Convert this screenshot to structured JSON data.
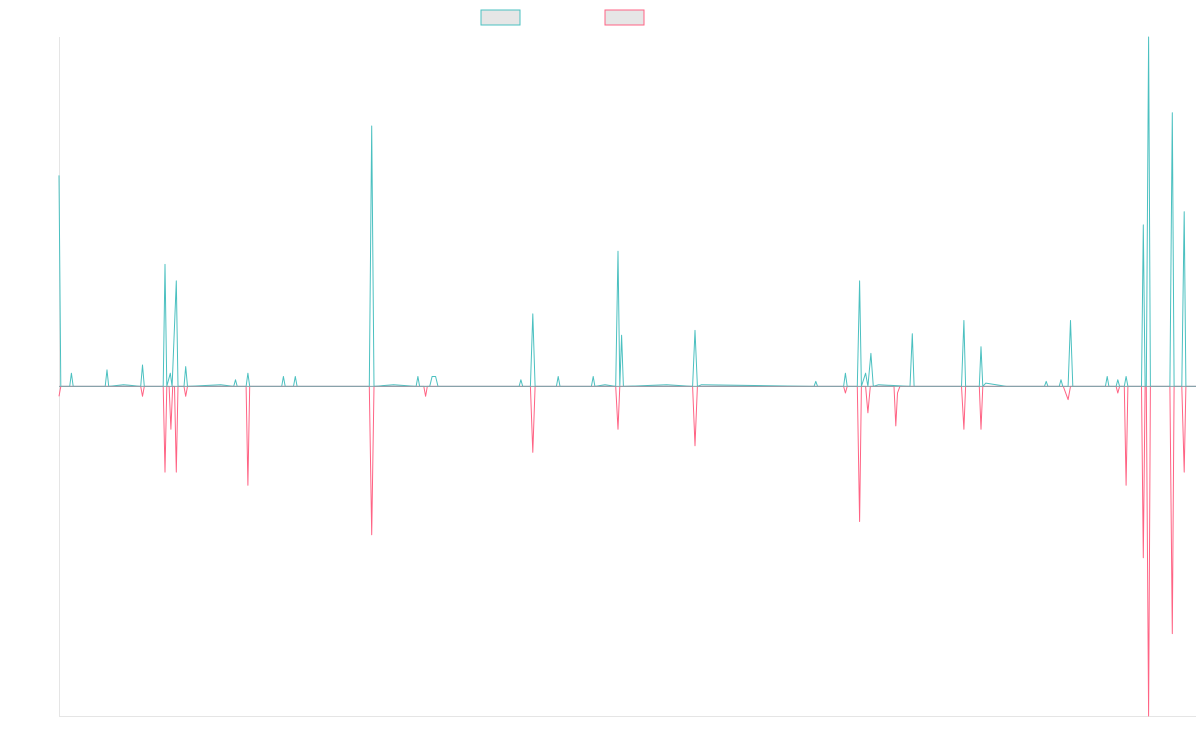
{
  "chart_data": {
    "type": "line",
    "title": "",
    "xlabel": "",
    "ylabel": "",
    "ylim": [
      -1.0,
      1.06
    ],
    "grid": false,
    "legend_position": "top-center",
    "colors": {
      "series_a": "#4bc0c0",
      "series_b": "#ff6384",
      "legend_fill": "#e6e6e6"
    },
    "series": [
      {
        "name": "",
        "color": "#4bc0c0",
        "points": [
          [
            0,
            0.64
          ],
          [
            0.3,
            0
          ],
          [
            1.8,
            0
          ],
          [
            2.1,
            0.04
          ],
          [
            2.4,
            0
          ],
          [
            7.8,
            0
          ],
          [
            8.1,
            0.05
          ],
          [
            8.4,
            0
          ],
          [
            10.9,
            0.005
          ],
          [
            13.8,
            0
          ],
          [
            14.1,
            0.065
          ],
          [
            14.4,
            0
          ],
          [
            17.6,
            0
          ],
          [
            17.9,
            0.37
          ],
          [
            18.2,
            0
          ],
          [
            18.8,
            0.04
          ],
          [
            19.1,
            0
          ],
          [
            19.8,
            0.32
          ],
          [
            20.1,
            0
          ],
          [
            21.1,
            0
          ],
          [
            21.4,
            0.06
          ],
          [
            21.7,
            0
          ],
          [
            27.3,
            0.005
          ],
          [
            29.5,
            0
          ],
          [
            29.8,
            0.02
          ],
          [
            30.1,
            0
          ],
          [
            31.6,
            0
          ],
          [
            31.9,
            0.04
          ],
          [
            32.2,
            0
          ],
          [
            37.6,
            0
          ],
          [
            37.9,
            0.03
          ],
          [
            38.2,
            0
          ],
          [
            39.6,
            0
          ],
          [
            39.9,
            0.03
          ],
          [
            40.2,
            0
          ],
          [
            52.4,
            0
          ],
          [
            52.8,
            0.79
          ],
          [
            53.2,
            0
          ],
          [
            56.5,
            0.005
          ],
          [
            60.3,
            0
          ],
          [
            60.6,
            0.03
          ],
          [
            60.9,
            0
          ],
          [
            62.6,
            0
          ],
          [
            63.0,
            0.03
          ],
          [
            63.6,
            0.03
          ],
          [
            64.0,
            0
          ],
          [
            77.7,
            0
          ],
          [
            78.0,
            0.02
          ],
          [
            78.3,
            0
          ],
          [
            79.6,
            0
          ],
          [
            80.0,
            0.22
          ],
          [
            80.4,
            0
          ],
          [
            84.0,
            0
          ],
          [
            84.3,
            0.03
          ],
          [
            84.6,
            0
          ],
          [
            89.9,
            0
          ],
          [
            90.2,
            0.03
          ],
          [
            90.5,
            0
          ],
          [
            92.2,
            0.005
          ],
          [
            94.0,
            0
          ],
          [
            94.4,
            0.41
          ],
          [
            94.7,
            0
          ],
          [
            95.0,
            0.155
          ],
          [
            95.3,
            0
          ],
          [
            102.6,
            0.005
          ],
          [
            107.0,
            0
          ],
          [
            107.4,
            0.17
          ],
          [
            107.8,
            0
          ],
          [
            108.5,
            0.005
          ],
          [
            127.5,
            0
          ],
          [
            127.8,
            0.015
          ],
          [
            128.1,
            0
          ],
          [
            132.5,
            0
          ],
          [
            132.8,
            0.04
          ],
          [
            133.1,
            0
          ],
          [
            134.8,
            0
          ],
          [
            135.2,
            0.32
          ],
          [
            135.5,
            0
          ],
          [
            136.2,
            0.04
          ],
          [
            136.6,
            0
          ],
          [
            137.1,
            0.1
          ],
          [
            137.5,
            0
          ],
          [
            138.4,
            0.005
          ],
          [
            143.7,
            0
          ],
          [
            144.1,
            0.16
          ],
          [
            144.4,
            0
          ],
          [
            152.4,
            0
          ],
          [
            152.8,
            0.2
          ],
          [
            153.1,
            0
          ],
          [
            155.4,
            0
          ],
          [
            155.7,
            0.12
          ],
          [
            156.0,
            0
          ],
          [
            156.5,
            0.01
          ],
          [
            160.0,
            0
          ],
          [
            166.4,
            0
          ],
          [
            166.7,
            0.015
          ],
          [
            167.0,
            0
          ],
          [
            168.9,
            0
          ],
          [
            169.2,
            0.02
          ],
          [
            169.5,
            0
          ],
          [
            170.4,
            0
          ],
          [
            170.8,
            0.2
          ],
          [
            171.2,
            0
          ],
          [
            176.7,
            0
          ],
          [
            177.0,
            0.03
          ],
          [
            177.3,
            0
          ],
          [
            178.5,
            0
          ],
          [
            178.8,
            0.02
          ],
          [
            179.1,
            0
          ],
          [
            179.9,
            0
          ],
          [
            180.2,
            0.03
          ],
          [
            180.5,
            0
          ],
          [
            182.8,
            0
          ],
          [
            183.1,
            0.49
          ],
          [
            183.4,
            0
          ],
          [
            183.6,
            0
          ],
          [
            184.0,
            1.06
          ],
          [
            184.3,
            0
          ],
          [
            187.6,
            0
          ],
          [
            188.0,
            0.83
          ],
          [
            188.3,
            0
          ],
          [
            189.6,
            0
          ],
          [
            190.0,
            0.53
          ],
          [
            190.3,
            0
          ],
          [
            192,
            0
          ]
        ]
      },
      {
        "name": "",
        "color": "#ff6384",
        "points": [
          [
            0,
            -0.03
          ],
          [
            0.3,
            0
          ],
          [
            13.8,
            0
          ],
          [
            14.1,
            -0.03
          ],
          [
            14.4,
            0
          ],
          [
            17.6,
            0
          ],
          [
            17.9,
            -0.26
          ],
          [
            18.2,
            0
          ],
          [
            18.6,
            0
          ],
          [
            18.9,
            -0.13
          ],
          [
            19.2,
            0
          ],
          [
            19.5,
            0
          ],
          [
            19.8,
            -0.26
          ],
          [
            20.1,
            0
          ],
          [
            21.1,
            0
          ],
          [
            21.4,
            -0.03
          ],
          [
            21.7,
            0
          ],
          [
            31.6,
            0
          ],
          [
            31.9,
            -0.3
          ],
          [
            32.2,
            0
          ],
          [
            52.4,
            0
          ],
          [
            52.8,
            -0.45
          ],
          [
            53.2,
            0
          ],
          [
            61.6,
            0
          ],
          [
            61.9,
            -0.03
          ],
          [
            62.2,
            0
          ],
          [
            78.3,
            0
          ],
          [
            79.6,
            0
          ],
          [
            80.0,
            -0.2
          ],
          [
            80.4,
            0
          ],
          [
            94.0,
            0
          ],
          [
            94.4,
            -0.13
          ],
          [
            94.7,
            0
          ],
          [
            107.0,
            0
          ],
          [
            107.4,
            -0.18
          ],
          [
            107.8,
            0
          ],
          [
            132.5,
            0
          ],
          [
            132.8,
            -0.02
          ],
          [
            133.1,
            0
          ],
          [
            134.8,
            0
          ],
          [
            135.2,
            -0.41
          ],
          [
            135.5,
            0
          ],
          [
            136.2,
            0
          ],
          [
            136.6,
            -0.08
          ],
          [
            137.0,
            0
          ],
          [
            141.0,
            0
          ],
          [
            141.3,
            -0.12
          ],
          [
            141.6,
            -0.02
          ],
          [
            142.0,
            0
          ],
          [
            150.0,
            0
          ],
          [
            152.4,
            0
          ],
          [
            152.8,
            -0.13
          ],
          [
            153.1,
            0
          ],
          [
            155.4,
            0
          ],
          [
            155.7,
            -0.13
          ],
          [
            156.0,
            0
          ],
          [
            169.6,
            0
          ],
          [
            170.4,
            -0.04
          ],
          [
            170.8,
            0
          ],
          [
            178.5,
            0
          ],
          [
            178.8,
            -0.02
          ],
          [
            179.1,
            0
          ],
          [
            179.9,
            0
          ],
          [
            180.2,
            -0.3
          ],
          [
            180.5,
            0
          ],
          [
            182.8,
            0
          ],
          [
            183.1,
            -0.52
          ],
          [
            183.4,
            0
          ],
          [
            183.6,
            0
          ],
          [
            184.0,
            -1.0
          ],
          [
            184.3,
            0
          ],
          [
            187.6,
            0
          ],
          [
            188.0,
            -0.75
          ],
          [
            188.3,
            0
          ],
          [
            189.6,
            0
          ],
          [
            190.0,
            -0.26
          ],
          [
            190.3,
            0
          ],
          [
            192,
            0
          ]
        ]
      }
    ]
  }
}
